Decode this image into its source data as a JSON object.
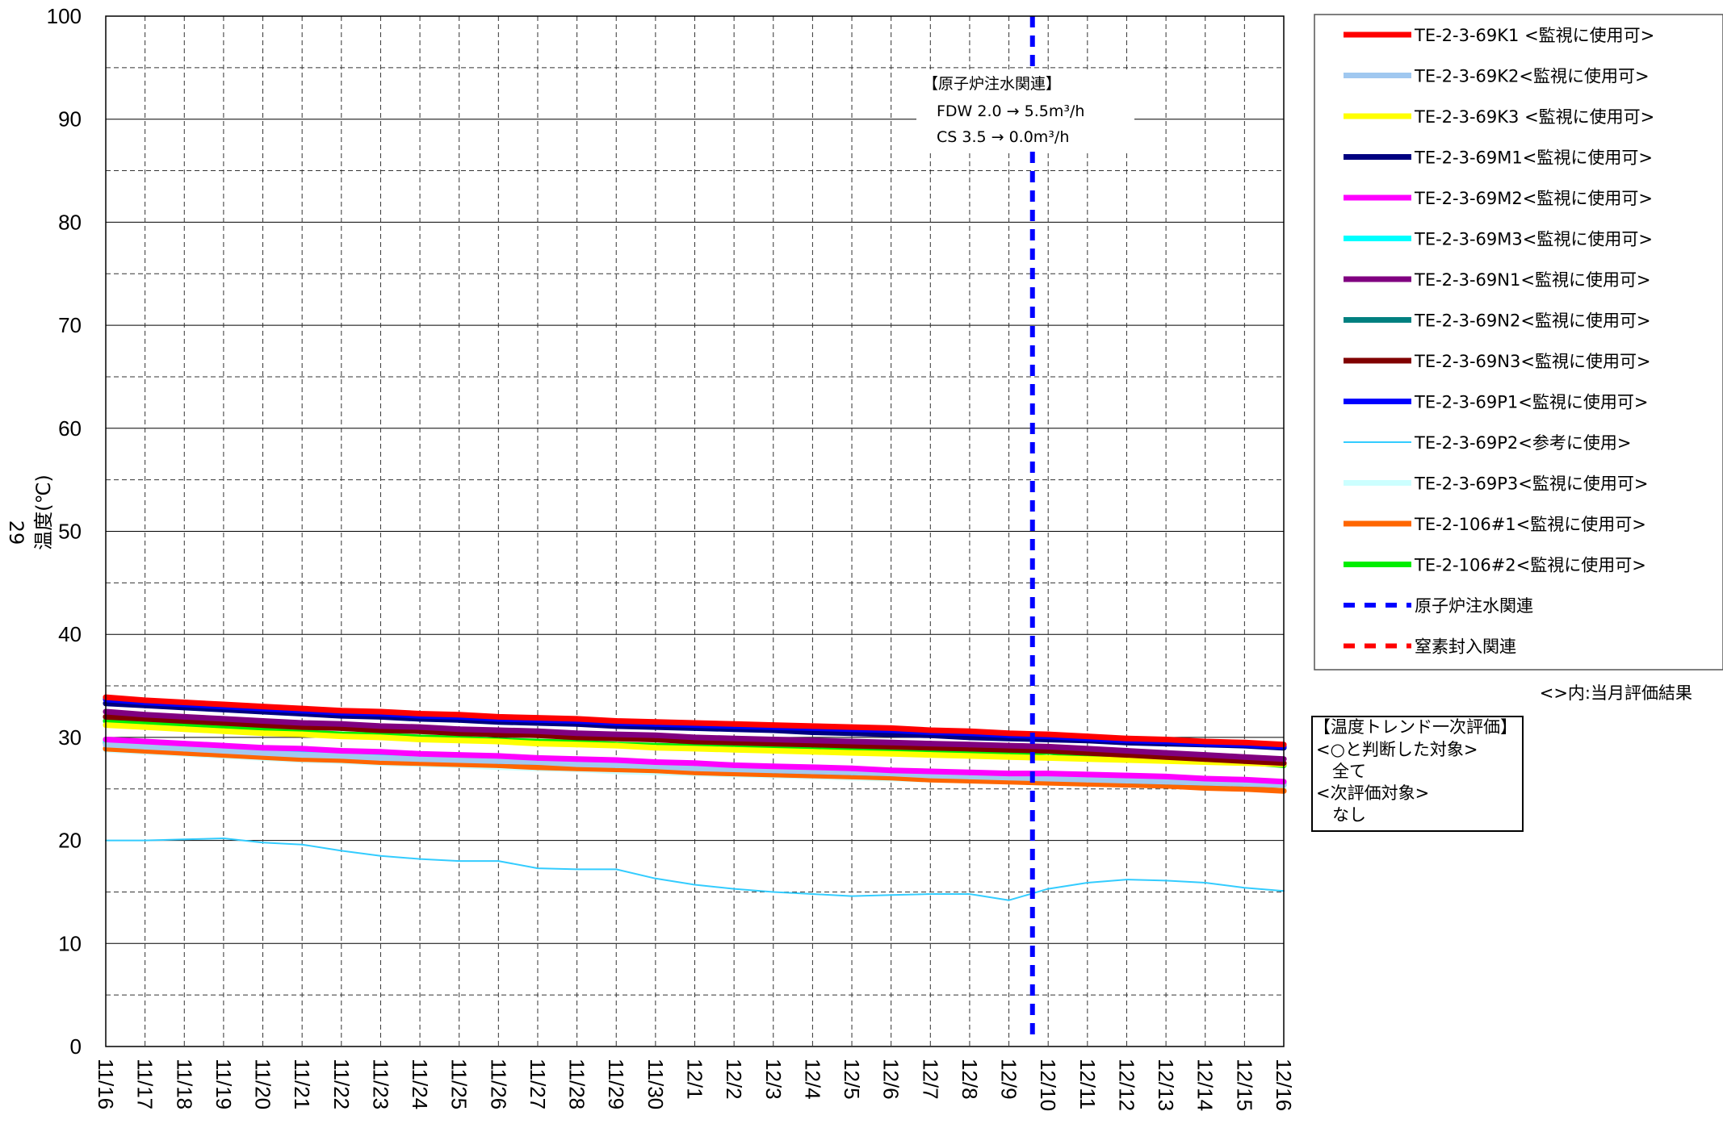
{
  "chart_data": {
    "type": "line",
    "ylabel": "温度(℃)",
    "ylim": [
      0,
      100
    ],
    "yticks": [
      0,
      10,
      20,
      30,
      40,
      50,
      60,
      70,
      80,
      90,
      100
    ],
    "categories": [
      "11/16",
      "11/17",
      "11/18",
      "11/19",
      "11/20",
      "11/21",
      "11/22",
      "11/23",
      "11/24",
      "11/25",
      "11/26",
      "11/27",
      "11/28",
      "11/29",
      "11/30",
      "12/1",
      "12/2",
      "12/3",
      "12/4",
      "12/5",
      "12/6",
      "12/7",
      "12/8",
      "12/9",
      "12/10",
      "12/11",
      "12/12",
      "12/13",
      "12/14",
      "12/15",
      "12/16"
    ],
    "grid": true,
    "legend_position": "right",
    "series": [
      {
        "name": "TE-2-3-69K1 <監視に使用可>",
        "color": "#ff0000",
        "width": 7,
        "values": [
          33.9,
          33.6,
          33.4,
          33.2,
          33.0,
          32.8,
          32.6,
          32.5,
          32.3,
          32.2,
          32.0,
          31.9,
          31.8,
          31.6,
          31.5,
          31.4,
          31.3,
          31.2,
          31.1,
          31.0,
          30.9,
          30.7,
          30.6,
          30.4,
          30.3,
          30.1,
          29.9,
          29.8,
          29.6,
          29.5,
          29.3
        ]
      },
      {
        "name": "TE-2-3-69K2<監視に使用可>",
        "color": "#a0c8f0",
        "width": 7,
        "values": [
          29.3,
          29.1,
          28.9,
          28.7,
          28.5,
          28.3,
          28.2,
          28.0,
          27.9,
          27.8,
          27.7,
          27.6,
          27.4,
          27.3,
          27.2,
          27.0,
          26.9,
          26.8,
          26.7,
          26.6,
          26.5,
          26.3,
          26.2,
          26.1,
          26.0,
          25.9,
          25.8,
          25.7,
          25.6,
          25.5,
          25.4
        ]
      },
      {
        "name": "TE-2-3-69K3 <監視に使用可>",
        "color": "#ffff00",
        "width": 7,
        "values": [
          31.2,
          31.0,
          30.8,
          30.6,
          30.4,
          30.3,
          30.1,
          30.0,
          29.8,
          29.7,
          29.6,
          29.4,
          29.3,
          29.2,
          29.0,
          28.9,
          28.8,
          28.7,
          28.6,
          28.5,
          28.4,
          28.3,
          28.2,
          28.1,
          28.0,
          27.9,
          27.8,
          27.7,
          27.6,
          27.5,
          27.4
        ]
      },
      {
        "name": "TE-2-3-69M1<監視に使用可>",
        "color": "#000080",
        "width": 7,
        "values": [
          33.3,
          33.1,
          32.9,
          32.7,
          32.5,
          32.3,
          32.1,
          32.0,
          31.8,
          31.7,
          31.5,
          31.4,
          31.3,
          31.1,
          31.0,
          30.9,
          30.8,
          30.7,
          30.5,
          30.4,
          30.3,
          30.2,
          30.0,
          29.9,
          29.8,
          29.7,
          29.5,
          29.4,
          29.3,
          29.2,
          29.0
        ]
      },
      {
        "name": "TE-2-3-69M2<監視に使用可>",
        "color": "#ff00ff",
        "width": 7,
        "values": [
          29.8,
          29.6,
          29.4,
          29.2,
          29.0,
          28.9,
          28.7,
          28.6,
          28.4,
          28.3,
          28.2,
          28.0,
          27.9,
          27.8,
          27.6,
          27.5,
          27.3,
          27.2,
          27.1,
          27.0,
          26.8,
          26.7,
          26.6,
          26.5,
          26.5,
          26.4,
          26.3,
          26.2,
          26.0,
          25.9,
          25.7
        ]
      },
      {
        "name": "TE-2-3-69M3<監視に使用可>",
        "color": "#00ffff",
        "width": 7,
        "values": [
          29.6,
          29.4,
          29.2,
          29.0,
          28.8,
          28.6,
          28.5,
          28.3,
          28.2,
          28.1,
          27.9,
          27.8,
          27.7,
          27.5,
          27.4,
          27.3,
          27.2,
          27.0,
          26.9,
          26.8,
          26.7,
          26.6,
          26.5,
          26.4,
          26.3,
          26.2,
          26.0,
          25.9,
          25.8,
          25.7,
          25.6
        ]
      },
      {
        "name": "TE-2-3-69N1<監視に使用可>",
        "color": "#800080",
        "width": 7,
        "values": [
          32.5,
          32.2,
          32.0,
          31.8,
          31.6,
          31.4,
          31.3,
          31.1,
          31.0,
          30.8,
          30.7,
          30.6,
          30.4,
          30.3,
          30.2,
          30.0,
          29.9,
          29.8,
          29.7,
          29.6,
          29.5,
          29.4,
          29.3,
          29.2,
          29.1,
          28.9,
          28.7,
          28.5,
          28.3,
          28.1,
          27.9
        ]
      },
      {
        "name": "TE-2-3-69N2<監視に使用可>",
        "color": "#008080",
        "width": 7,
        "values": [
          29.4,
          29.2,
          29.0,
          28.8,
          28.6,
          28.4,
          28.3,
          28.1,
          28.0,
          27.9,
          27.7,
          27.6,
          27.5,
          27.3,
          27.2,
          27.1,
          27.0,
          26.8,
          26.7,
          26.6,
          26.5,
          26.4,
          26.3,
          26.2,
          26.1,
          26.0,
          25.8,
          25.7,
          25.6,
          25.5,
          25.4
        ]
      },
      {
        "name": "TE-2-3-69N3<監視に使用可>",
        "color": "#800000",
        "width": 7,
        "values": [
          32.0,
          31.8,
          31.6,
          31.4,
          31.2,
          31.0,
          30.9,
          30.7,
          30.6,
          30.4,
          30.3,
          30.2,
          30.0,
          29.9,
          29.8,
          29.6,
          29.5,
          29.4,
          29.3,
          29.2,
          29.1,
          29.0,
          28.9,
          28.8,
          28.7,
          28.5,
          28.3,
          28.1,
          27.9,
          27.7,
          27.5
        ]
      },
      {
        "name": "TE-2-3-69P1<監視に使用可>",
        "color": "#0000ff",
        "width": 7,
        "values": [
          33.7,
          33.4,
          33.2,
          33.0,
          32.8,
          32.6,
          32.4,
          32.3,
          32.1,
          32.0,
          31.8,
          31.7,
          31.6,
          31.4,
          31.3,
          31.2,
          31.1,
          31.0,
          30.9,
          30.8,
          30.7,
          30.5,
          30.4,
          30.2,
          30.1,
          29.9,
          29.7,
          29.6,
          29.4,
          29.3,
          29.1
        ]
      },
      {
        "name": "TE-2-3-69P2<参考に使用>",
        "color": "#33ccff",
        "width": 2,
        "values": [
          20.0,
          20.0,
          20.1,
          20.2,
          19.8,
          19.6,
          19.0,
          18.5,
          18.2,
          18.0,
          18.0,
          17.3,
          17.2,
          17.2,
          16.3,
          15.7,
          15.3,
          15.0,
          14.8,
          14.6,
          14.7,
          14.8,
          14.8,
          14.2,
          15.3,
          15.9,
          16.2,
          16.1,
          15.9,
          15.4,
          15.1
        ]
      },
      {
        "name": "TE-2-3-69P3<監視に使用可>",
        "color": "#ccffff",
        "width": 7,
        "values": [
          28.8,
          28.6,
          28.4,
          28.2,
          28.0,
          27.8,
          27.7,
          27.5,
          27.4,
          27.3,
          27.1,
          27.0,
          26.9,
          26.7,
          26.6,
          26.5,
          26.4,
          26.3,
          26.2,
          26.1,
          26.0,
          25.9,
          25.8,
          25.7,
          25.6,
          25.5,
          25.4,
          25.3,
          25.2,
          25.1,
          25.0
        ]
      },
      {
        "name": "TE-2-106#1<監視に使用可>",
        "color": "#ff6600",
        "width": 7,
        "values": [
          28.9,
          28.7,
          28.5,
          28.3,
          28.1,
          27.9,
          27.8,
          27.6,
          27.5,
          27.4,
          27.3,
          27.1,
          27.0,
          26.9,
          26.8,
          26.6,
          26.5,
          26.4,
          26.3,
          26.2,
          26.1,
          25.9,
          25.8,
          25.7,
          25.6,
          25.5,
          25.4,
          25.3,
          25.1,
          25.0,
          24.8
        ]
      },
      {
        "name": "TE-2-106#2<監視に使用可>",
        "color": "#00ee00",
        "width": 7,
        "values": [
          31.6,
          31.3,
          31.1,
          30.9,
          30.7,
          30.5,
          30.3,
          30.2,
          30.0,
          29.9,
          29.7,
          29.6,
          29.5,
          29.3,
          29.2,
          29.1,
          29.0,
          28.9,
          28.8,
          28.7,
          28.6,
          28.5,
          28.4,
          28.3,
          28.6,
          28.2,
          28.1,
          28.0,
          27.8,
          27.6,
          27.3
        ]
      }
    ],
    "reference_lines": [
      {
        "name": "原子炉注水関連",
        "color": "#0000ff",
        "x": 23.6
      },
      {
        "name": "窒素封入関連",
        "color": "#ff0000"
      }
    ],
    "annotation": {
      "lines": [
        "【原子炉注水関連】",
        "FDW 2.0 → 5.5m³/h",
        "CS 3.5 → 0.0m³/h"
      ]
    }
  },
  "legend_note": "<>内:当月評価結果",
  "evaluation_box": {
    "lines": [
      "【温度トレンド一次評価】",
      "<○と判断した対象>",
      "全て",
      "<次評価対象>",
      "なし"
    ]
  },
  "page_number": "29"
}
